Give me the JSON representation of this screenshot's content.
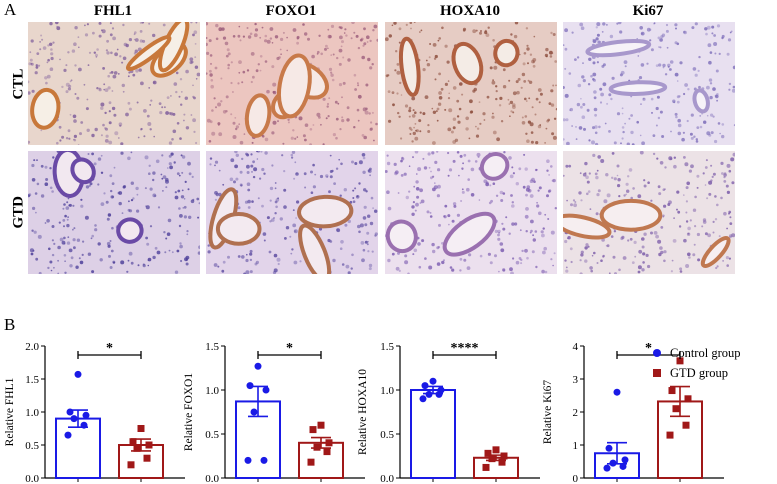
{
  "panels": {
    "a_label": "A",
    "b_label": "B"
  },
  "figure_a": {
    "columns": [
      "FHL1",
      "FOXO1",
      "HOXA10",
      "Ki67"
    ],
    "rows": [
      "CTL",
      "GTD"
    ]
  },
  "legend": {
    "items": [
      {
        "label": "Control group",
        "color": "#1a1ae6",
        "marker": "circle"
      },
      {
        "label": "GTD group",
        "color": "#a01818",
        "marker": "square"
      }
    ]
  },
  "colors": {
    "control": "#1a1ae6",
    "gtd": "#a01818"
  },
  "chart_data": [
    {
      "type": "bar",
      "ylabel": "Relative FHL1",
      "ylim": [
        0,
        2.0
      ],
      "yticks": [
        "0.0",
        "0.5",
        "1.0",
        "1.5",
        "2.0"
      ],
      "significance": "*",
      "series": [
        {
          "group": "control",
          "mean": 0.9,
          "sem": 0.13,
          "points": [
            1.57,
            1.0,
            0.95,
            0.9,
            0.8,
            0.65
          ]
        },
        {
          "group": "gtd",
          "mean": 0.5,
          "sem": 0.09,
          "points": [
            0.75,
            0.55,
            0.5,
            0.45,
            0.3,
            0.2
          ]
        }
      ]
    },
    {
      "type": "bar",
      "ylabel": "Relative FOXO1",
      "ylim": [
        0,
        1.5
      ],
      "yticks": [
        "0.0",
        "0.5",
        "1.0",
        "1.5"
      ],
      "significance": "*",
      "series": [
        {
          "group": "control",
          "mean": 0.87,
          "sem": 0.17,
          "points": [
            1.27,
            1.05,
            1.0,
            0.75,
            0.2,
            0.2
          ]
        },
        {
          "group": "gtd",
          "mean": 0.4,
          "sem": 0.06,
          "points": [
            0.6,
            0.55,
            0.4,
            0.35,
            0.3,
            0.18
          ]
        }
      ]
    },
    {
      "type": "bar",
      "ylabel": "Relative HOXA10",
      "ylim": [
        0,
        1.5
      ],
      "yticks": [
        "0.0",
        "0.5",
        "1.0",
        "1.5"
      ],
      "significance": "****",
      "series": [
        {
          "group": "control",
          "mean": 1.0,
          "sem": 0.04,
          "points": [
            1.1,
            1.05,
            1.0,
            0.95,
            0.95,
            0.9
          ]
        },
        {
          "group": "gtd",
          "mean": 0.23,
          "sem": 0.03,
          "points": [
            0.32,
            0.28,
            0.25,
            0.22,
            0.18,
            0.12
          ]
        }
      ]
    },
    {
      "type": "bar",
      "ylabel": "Relative Ki67",
      "ylim": [
        0,
        4
      ],
      "yticks": [
        "0",
        "1",
        "2",
        "3",
        "4"
      ],
      "significance": "*",
      "series": [
        {
          "group": "control",
          "mean": 0.75,
          "sem": 0.32,
          "points": [
            2.6,
            0.9,
            0.55,
            0.45,
            0.35,
            0.3
          ]
        },
        {
          "group": "gtd",
          "mean": 2.32,
          "sem": 0.45,
          "points": [
            3.55,
            2.65,
            2.4,
            2.1,
            1.6,
            1.3
          ]
        }
      ]
    }
  ]
}
